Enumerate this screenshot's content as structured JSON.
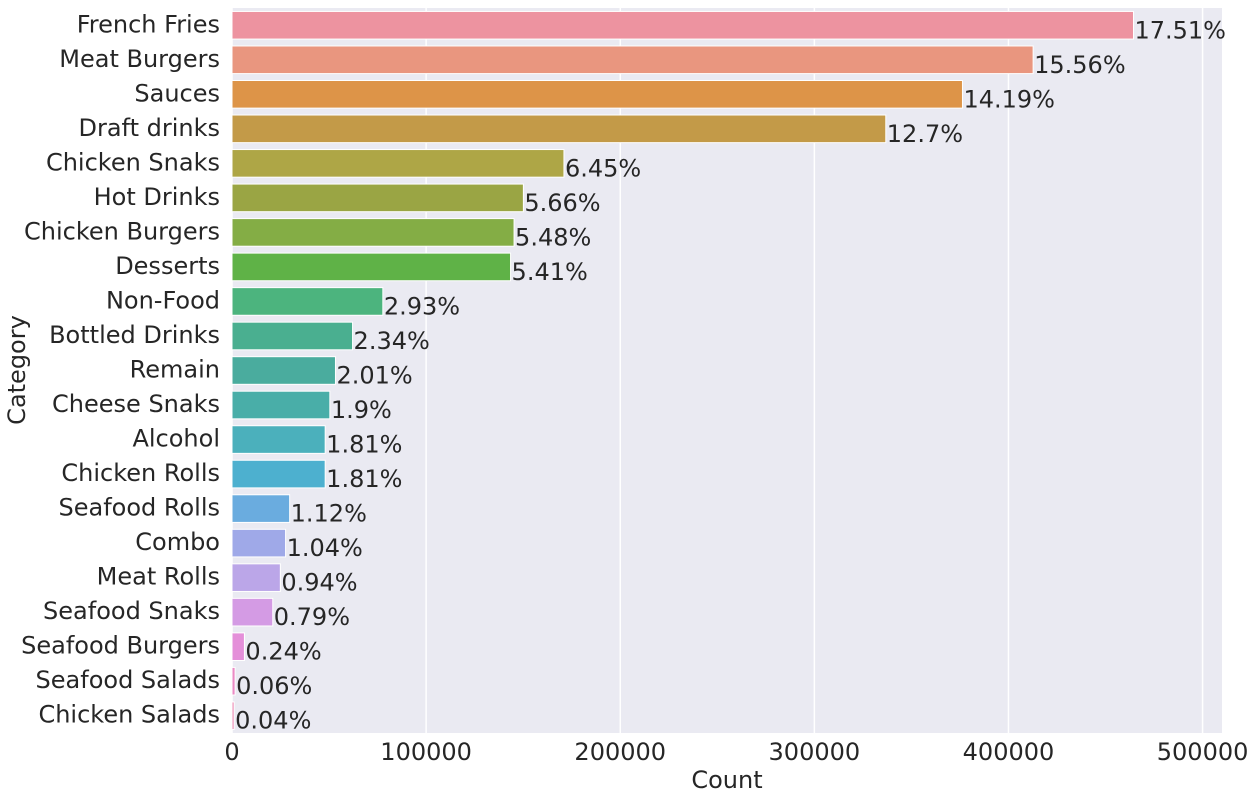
{
  "chart_data": {
    "type": "barh",
    "xlabel": "Count",
    "ylabel": "Category",
    "categories": [
      "French Fries",
      "Meat Burgers",
      "Sauces",
      "Draft drinks",
      "Chicken Snaks",
      "Hot Drinks",
      "Chicken Burgers",
      "Desserts",
      "Non-Food",
      "Bottled Drinks",
      "Remain",
      "Cheese Snaks",
      "Alcohol",
      "Chicken Rolls",
      "Seafood Rolls",
      "Combo",
      "Meat Rolls",
      "Seafood Snaks",
      "Seafood Burgers",
      "Seafood Salads",
      "Chicken Salads"
    ],
    "values": [
      464400,
      412700,
      376300,
      336800,
      171000,
      150100,
      145300,
      143500,
      77700,
      62100,
      53300,
      50400,
      48000,
      48000,
      29700,
      27600,
      24900,
      21000,
      6400,
      1600,
      1100
    ],
    "value_labels": [
      "17.51%",
      "15.56%",
      "14.19%",
      "12.7%",
      "6.45%",
      "5.66%",
      "5.48%",
      "5.41%",
      "2.93%",
      "2.34%",
      "2.01%",
      "1.9%",
      "1.81%",
      "1.81%",
      "1.12%",
      "1.04%",
      "0.94%",
      "0.79%",
      "0.24%",
      "0.06%",
      "0.04%"
    ],
    "colors": [
      "#ed93a0",
      "#e9967f",
      "#dd9448",
      "#c39a48",
      "#aea646",
      "#9aa544",
      "#84ad45",
      "#5fb247",
      "#4cb47e",
      "#4aaf90",
      "#4aac9e",
      "#49aea8",
      "#4bb0bc",
      "#4db0cf",
      "#6aacdf",
      "#9fa9e8",
      "#bba6e8",
      "#d49be4",
      "#e48fd9",
      "#eb8bc5",
      "#ec8db5"
    ],
    "xlim": [
      0,
      510000
    ],
    "xticks": [
      0,
      100000,
      200000,
      300000,
      400000,
      500000
    ],
    "grid": true
  }
}
